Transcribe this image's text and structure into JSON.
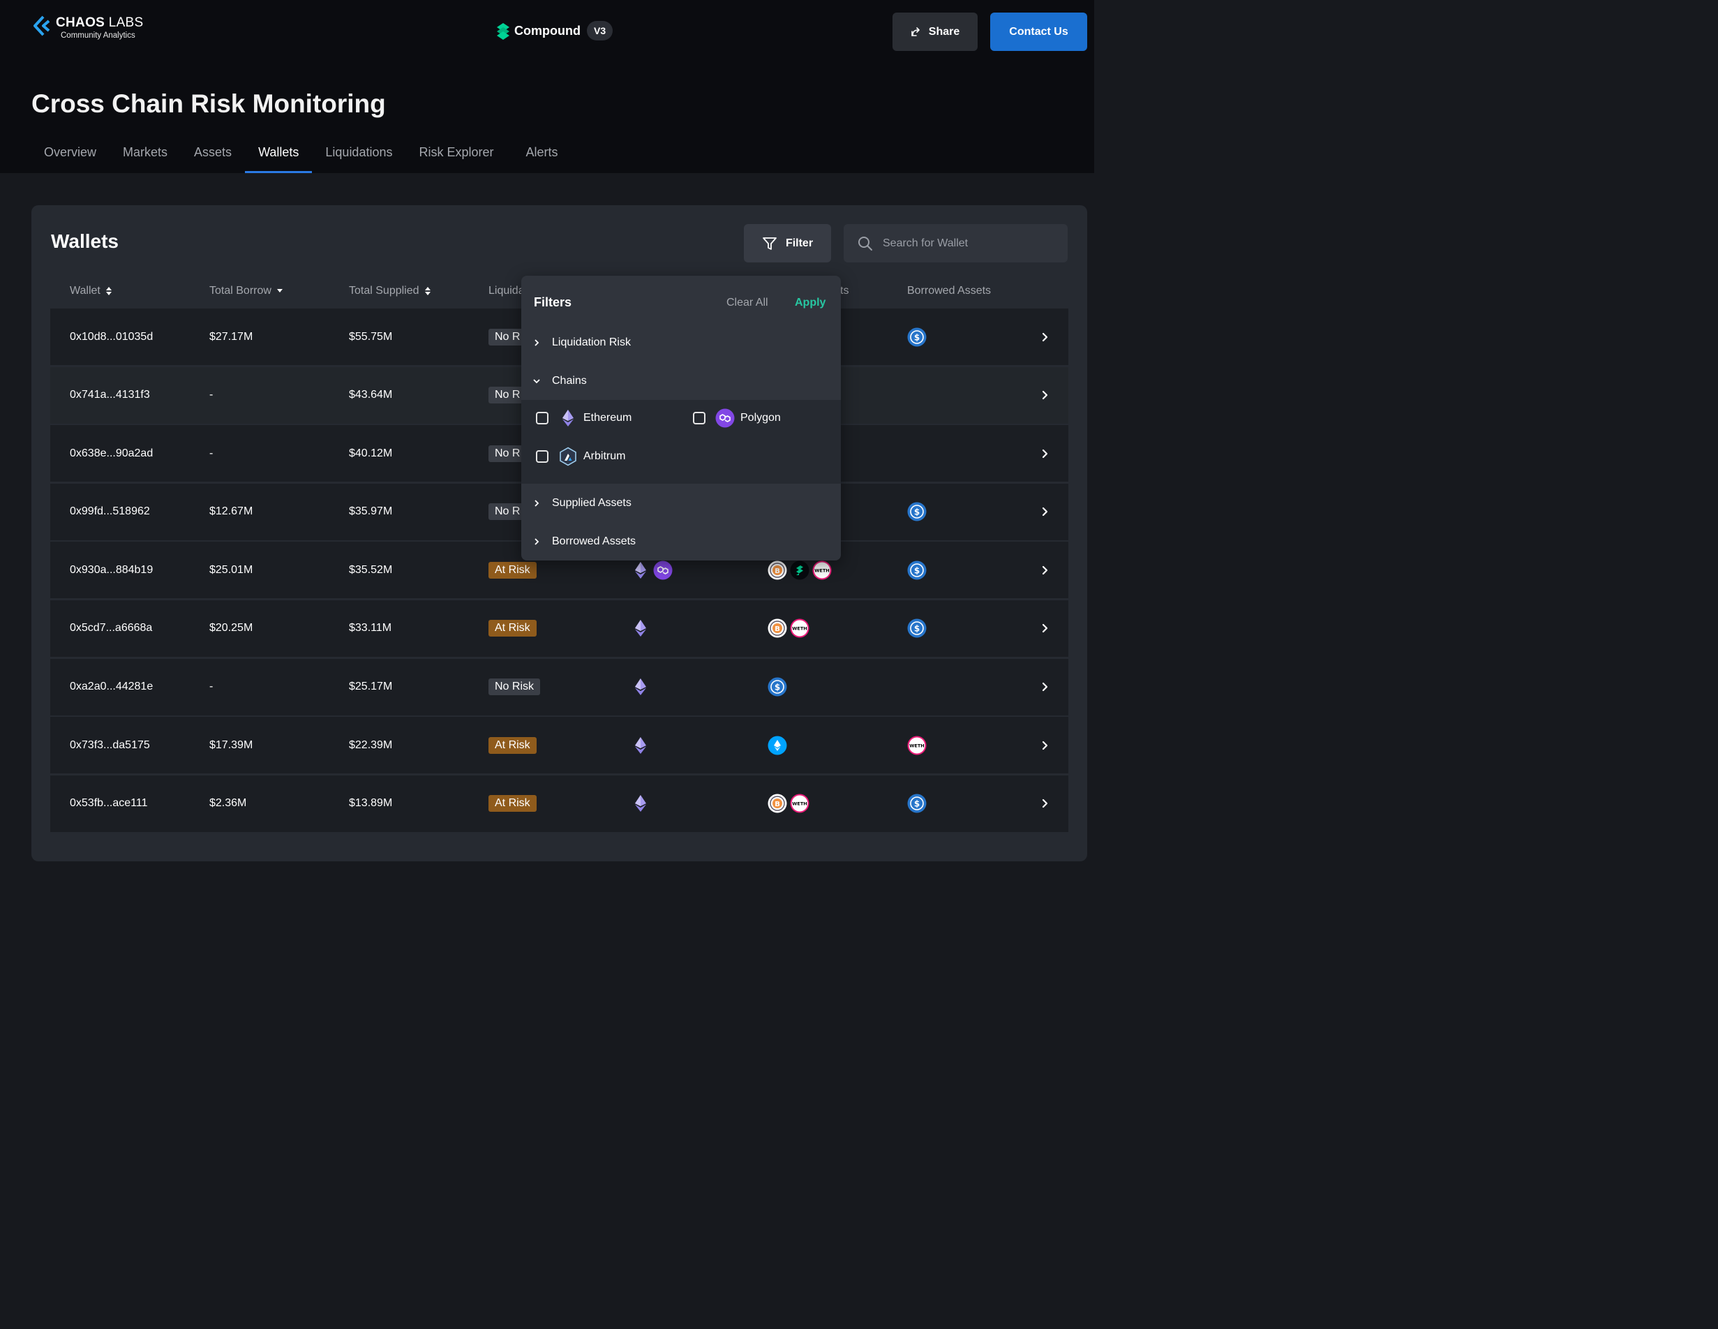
{
  "header": {
    "logo_title": "CHAOS",
    "logo_title_2": "LABS",
    "logo_subtitle": "Community Analytics",
    "product_name": "Compound",
    "product_version": "V3",
    "share_label": "Share",
    "contact_label": "Contact Us"
  },
  "page_title": "Cross Chain Risk Monitoring",
  "tabs": [
    {
      "label": "Overview",
      "active": false
    },
    {
      "label": "Markets",
      "active": false
    },
    {
      "label": "Assets",
      "active": false
    },
    {
      "label": "Wallets",
      "active": true
    },
    {
      "label": "Liquidations",
      "active": false
    },
    {
      "label": "Risk Explorer",
      "active": false
    },
    {
      "label": "Alerts",
      "active": false
    }
  ],
  "wallets": {
    "title": "Wallets",
    "filter_label": "Filter",
    "search_placeholder": "Search for Wallet",
    "columns": {
      "wallet": "Wallet",
      "total_borrow": "Total Borrow",
      "total_supplied": "Total Supplied",
      "liquidation_risk": "Liquida",
      "supplied_assets": "ts",
      "borrowed_assets": "Borrowed Assets"
    },
    "rows": [
      {
        "wallet": "0x10d8...01035d",
        "borrow": "$27.17M",
        "supplied": "$55.75M",
        "risk": "No R",
        "risk_type": "no",
        "chains": [],
        "supplied_assets": [],
        "borrowed_assets": [
          "usdc"
        ]
      },
      {
        "wallet": "0x741a...4131f3",
        "borrow": "-",
        "supplied": "$43.64M",
        "risk": "No R",
        "risk_type": "no",
        "chains": [],
        "supplied_assets": [],
        "borrowed_assets": []
      },
      {
        "wallet": "0x638e...90a2ad",
        "borrow": "-",
        "supplied": "$40.12M",
        "risk": "No R",
        "risk_type": "no",
        "chains": [],
        "supplied_assets": [],
        "borrowed_assets": []
      },
      {
        "wallet": "0x99fd...518962",
        "borrow": "$12.67M",
        "supplied": "$35.97M",
        "risk": "No R",
        "risk_type": "no",
        "chains": [],
        "supplied_assets": [],
        "borrowed_assets": [
          "usdc"
        ]
      },
      {
        "wallet": "0x930a...884b19",
        "borrow": "$25.01M",
        "supplied": "$35.52M",
        "risk": "At Risk",
        "risk_type": "at",
        "chains": [
          "ethereum",
          "polygon"
        ],
        "supplied_assets": [
          "wbtc",
          "comp",
          "weth"
        ],
        "borrowed_assets": [
          "usdc"
        ]
      },
      {
        "wallet": "0x5cd7...a6668a",
        "borrow": "$20.25M",
        "supplied": "$33.11M",
        "risk": "At Risk",
        "risk_type": "at",
        "chains": [
          "ethereum"
        ],
        "supplied_assets": [
          "wbtc",
          "weth"
        ],
        "borrowed_assets": [
          "usdc"
        ]
      },
      {
        "wallet": "0xa2a0...44281e",
        "borrow": "-",
        "supplied": "$25.17M",
        "risk": "No Risk",
        "risk_type": "no",
        "chains": [
          "ethereum"
        ],
        "supplied_assets": [
          "usdc"
        ],
        "borrowed_assets": []
      },
      {
        "wallet": "0x73f3...da5175",
        "borrow": "$17.39M",
        "supplied": "$22.39M",
        "risk": "At Risk",
        "risk_type": "at",
        "chains": [
          "ethereum"
        ],
        "supplied_assets": [
          "steth"
        ],
        "borrowed_assets": [
          "weth"
        ]
      },
      {
        "wallet": "0x53fb...ace111",
        "borrow": "$2.36M",
        "supplied": "$13.89M",
        "risk": "At Risk",
        "risk_type": "at",
        "chains": [
          "ethereum"
        ],
        "supplied_assets": [
          "wbtc",
          "weth"
        ],
        "borrowed_assets": [
          "usdc"
        ]
      }
    ]
  },
  "filters_panel": {
    "title": "Filters",
    "clear_label": "Clear All",
    "apply_label": "Apply",
    "sections": [
      {
        "label": "Liquidation Risk",
        "expanded": false
      },
      {
        "label": "Chains",
        "expanded": true
      },
      {
        "label": "Supplied Assets",
        "expanded": false
      },
      {
        "label": "Borrowed Assets",
        "expanded": false
      }
    ],
    "chain_options": [
      {
        "label": "Ethereum",
        "icon": "ethereum",
        "checked": false
      },
      {
        "label": "Polygon",
        "icon": "polygon",
        "checked": false
      },
      {
        "label": "Arbitrum",
        "icon": "arbitrum",
        "checked": false
      }
    ]
  },
  "colors": {
    "accent": "#1a6fd0",
    "apply": "#27c7a2",
    "at_risk": "#8f5b1c",
    "usdc": "#2775ca",
    "polygon": "#8247e5",
    "compound": "#00d395"
  }
}
